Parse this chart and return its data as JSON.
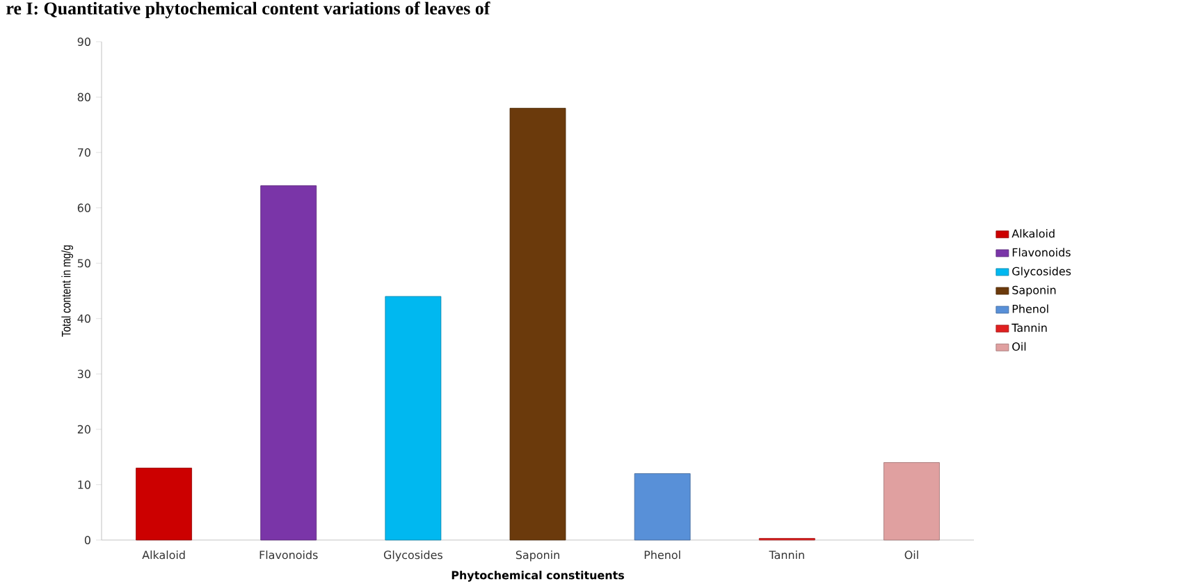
{
  "chart_data": {
    "type": "bar",
    "title": "re I: Quantitative phytochemical content variations of leaves of",
    "xlabel": "Phytochemical constituents",
    "ylabel": "Total content in mg/g",
    "categories": [
      "Alkaloid",
      "Flavonoids",
      "Glycosides",
      "Saponin",
      "Phenol",
      "Tannin",
      "Oil"
    ],
    "series": [
      {
        "name": "Alkaloid",
        "color": "#cc0000",
        "values": [
          13,
          null,
          null,
          null,
          null,
          null,
          null
        ]
      },
      {
        "name": "Flavonoids",
        "color": "#7a35a8",
        "values": [
          null,
          64,
          null,
          null,
          null,
          null,
          null
        ]
      },
      {
        "name": "Glycosides",
        "color": "#00b8f0",
        "values": [
          null,
          null,
          44,
          null,
          null,
          null,
          null
        ]
      },
      {
        "name": "Saponin",
        "color": "#6b3a0c",
        "values": [
          null,
          null,
          null,
          78,
          null,
          null,
          null
        ]
      },
      {
        "name": "Phenol",
        "color": "#5890d8",
        "values": [
          null,
          null,
          null,
          null,
          12,
          null,
          null
        ]
      },
      {
        "name": "Tannin",
        "color": "#e02020",
        "values": [
          null,
          null,
          null,
          null,
          null,
          0.3,
          null
        ]
      },
      {
        "name": "Oil",
        "color": "#e0a0a0",
        "values": [
          null,
          null,
          null,
          null,
          null,
          null,
          14
        ]
      }
    ],
    "ylim": [
      0,
      90
    ],
    "yticks": [
      0,
      10,
      20,
      30,
      40,
      50,
      60,
      70,
      80,
      90
    ],
    "grid": false,
    "legend": "right"
  }
}
